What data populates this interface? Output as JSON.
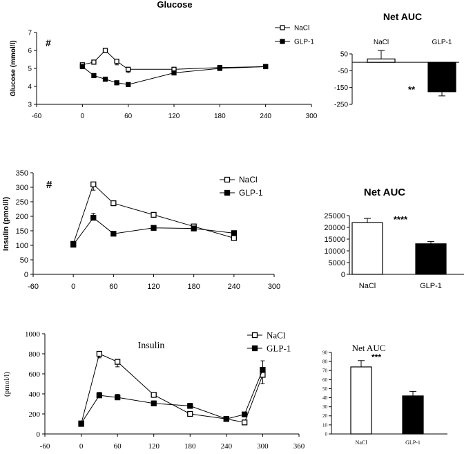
{
  "chart_data": [
    {
      "type": "line",
      "title": "Glucose",
      "ylabel": "Glucose (mmol/l)",
      "xlabel": "",
      "marker": "#",
      "xlim": [
        -60,
        300
      ],
      "ylim": [
        3,
        7
      ],
      "xticks": [
        "-60",
        "0",
        "60",
        "120",
        "180",
        "240",
        "300"
      ],
      "yticks": [
        "3",
        "4",
        "5",
        "6",
        "7"
      ],
      "legend": [
        "NaCl",
        "GLP-1"
      ],
      "series": [
        {
          "name": "NaCl",
          "x": [
            0,
            15,
            30,
            45,
            60,
            120,
            180,
            240
          ],
          "values": [
            5.2,
            5.35,
            6.0,
            5.4,
            4.95,
            4.95,
            5.05,
            5.1
          ],
          "err": [
            0.1,
            0.1,
            0.12,
            0.2,
            0.18,
            0.08,
            0.08,
            0.05
          ]
        },
        {
          "name": "GLP-1",
          "x": [
            0,
            15,
            30,
            45,
            60,
            120,
            180,
            240
          ],
          "values": [
            5.1,
            4.6,
            4.4,
            4.2,
            4.1,
            4.75,
            5.0,
            5.1
          ],
          "err": [
            0.08,
            0.08,
            0.1,
            0.08,
            0.08,
            0.1,
            0.08,
            0.05
          ]
        }
      ]
    },
    {
      "type": "bar",
      "title": "Net AUC",
      "categories": [
        "NaCl",
        "GLP-1"
      ],
      "values": [
        20,
        -175
      ],
      "err": [
        50,
        25
      ],
      "ylim": [
        -250,
        50
      ],
      "yticks": [
        "50",
        "-50",
        "-150",
        "-250"
      ],
      "significance": "**"
    },
    {
      "type": "line",
      "title": "",
      "ylabel": "Insulin (pmol/l)",
      "xlabel": "",
      "marker": "#",
      "xlim": [
        -60,
        300
      ],
      "ylim": [
        0,
        350
      ],
      "xticks": [
        "-60",
        "0",
        "60",
        "120",
        "180",
        "240",
        "300"
      ],
      "yticks": [
        "0",
        "50",
        "100",
        "150",
        "200",
        "250",
        "300",
        "350"
      ],
      "legend": [
        "NaCl",
        "GLP-1"
      ],
      "series": [
        {
          "name": "NaCl",
          "x": [
            0,
            30,
            60,
            120,
            180,
            240
          ],
          "values": [
            105,
            310,
            245,
            205,
            165,
            125
          ],
          "err": [
            5,
            20,
            6,
            6,
            6,
            6
          ]
        },
        {
          "name": "GLP-1",
          "x": [
            0,
            30,
            60,
            120,
            180,
            240
          ],
          "values": [
            102,
            195,
            140,
            160,
            158,
            142
          ],
          "err": [
            5,
            15,
            6,
            8,
            6,
            8
          ]
        }
      ]
    },
    {
      "type": "bar",
      "title": "Net AUC",
      "categories": [
        "NaCl",
        "GLP-1"
      ],
      "values": [
        22000,
        13000
      ],
      "err": [
        1800,
        1000
      ],
      "ylim": [
        0,
        25000
      ],
      "yticks": [
        "0",
        "5000",
        "10000",
        "15000",
        "20000",
        "25000"
      ],
      "significance": "****"
    },
    {
      "type": "line",
      "title": "Insulin",
      "ylabel": "(pmol/l)",
      "xlabel": "",
      "xlim": [
        -60,
        360
      ],
      "ylim": [
        0,
        1000
      ],
      "xticks": [
        "-60",
        "0",
        "60",
        "120",
        "180",
        "240",
        "300",
        "360"
      ],
      "yticks": [
        "0",
        "200",
        "400",
        "600",
        "800",
        "1000"
      ],
      "legend": [
        "NaCl",
        "GLP-1"
      ],
      "series": [
        {
          "name": "NaCl",
          "x": [
            0,
            30,
            60,
            120,
            180,
            240,
            270,
            300
          ],
          "values": [
            100,
            800,
            720,
            390,
            200,
            150,
            115,
            590
          ],
          "err": [
            10,
            40,
            50,
            25,
            20,
            15,
            15,
            90
          ]
        },
        {
          "name": "GLP-1",
          "x": [
            0,
            30,
            60,
            120,
            180,
            240,
            270,
            300
          ],
          "values": [
            105,
            385,
            365,
            305,
            280,
            150,
            195,
            640
          ],
          "err": [
            10,
            30,
            30,
            25,
            25,
            15,
            15,
            90
          ]
        }
      ]
    },
    {
      "type": "bar",
      "title": "Net AUC",
      "categories": [
        "NaCl",
        "GLP-1"
      ],
      "values": [
        74,
        42
      ],
      "err": [
        7,
        5
      ],
      "ylim": [
        0,
        90
      ],
      "yticks": [
        "0",
        "10",
        "20",
        "30",
        "40",
        "50",
        "60",
        "70",
        "80",
        "90"
      ],
      "significance": "***"
    }
  ]
}
